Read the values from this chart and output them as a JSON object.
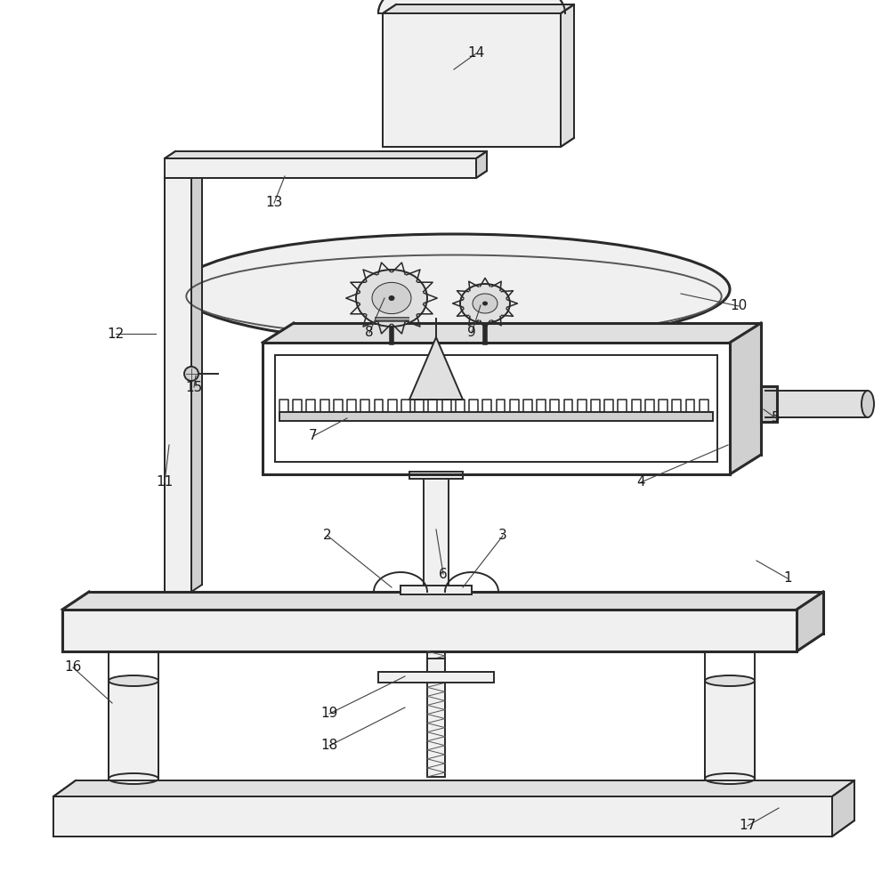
{
  "bg": "#ffffff",
  "lc": "#2a2a2a",
  "lc2": "#555555",
  "lw": 1.4,
  "lwt": 2.2,
  "lwn": 0.7,
  "fc0": "#ffffff",
  "fc1": "#f0f0f0",
  "fc2": "#e0e0e0",
  "fc3": "#d0d0d0"
}
